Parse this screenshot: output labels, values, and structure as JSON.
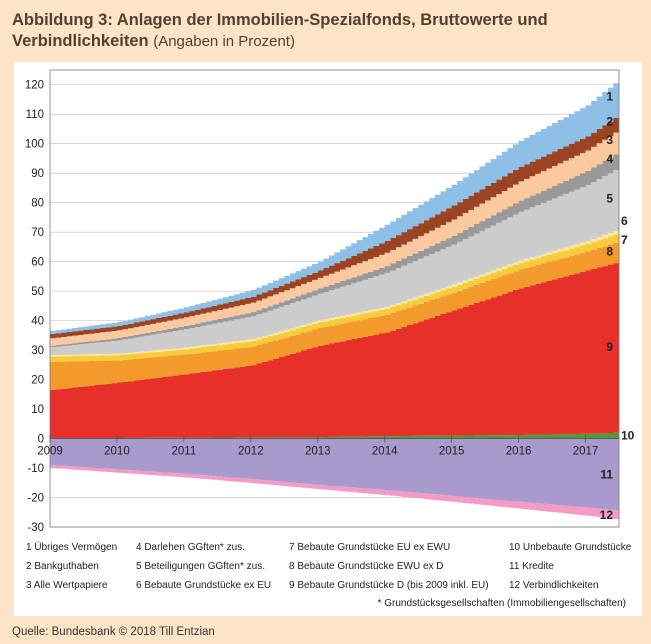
{
  "title": {
    "main": "Abbildung 3: Anlagen der Immobilien-Spezialfonds, Bruttowerte und Verbindlichkeiten",
    "sub": "(Angaben in Prozent)"
  },
  "chart_data": {
    "type": "area",
    "stacked": true,
    "xlabel": "",
    "ylabel": "",
    "xlim": [
      2009,
      2017.5
    ],
    "ylim": [
      -30,
      125
    ],
    "yticks": [
      -30,
      -20,
      -10,
      0,
      10,
      20,
      30,
      40,
      50,
      60,
      70,
      80,
      90,
      100,
      110,
      120
    ],
    "xticks": [
      "2009",
      "2010",
      "2011",
      "2012",
      "2013",
      "2014",
      "2015",
      "2016",
      "2017"
    ],
    "grid": "horizontal",
    "x": [
      2009,
      2010,
      2011,
      2012,
      2013,
      2014,
      2015,
      2016,
      2017,
      2017.5
    ],
    "series": [
      {
        "id": "10",
        "name": "Unbebaute Grundstücke",
        "color": "#4f9a3c",
        "values": [
          0.2,
          0.2,
          0.3,
          0.4,
          0.5,
          0.8,
          1.0,
          1.2,
          1.6,
          2.0
        ]
      },
      {
        "id": "9",
        "name": "Bebaute Grundstücke D (bis 2009 inkl. EU)",
        "color": "#e8302a",
        "values": [
          16.3,
          18.8,
          21.5,
          24.5,
          31.0,
          35.2,
          42.5,
          49.8,
          55.4,
          58.0
        ]
      },
      {
        "id": "8",
        "name": "Bebaute Grundstücke EWU ex D",
        "color": "#f39a2c",
        "values": [
          9.5,
          7.5,
          6.7,
          6.3,
          6.0,
          6.0,
          6.0,
          6.4,
          6.5,
          7.0
        ]
      },
      {
        "id": "7",
        "name": "Bebaute Grundstücke EU ex EWU",
        "color": "#f7cb3c",
        "values": [
          1.8,
          1.8,
          1.8,
          1.9,
          1.9,
          2.0,
          2.0,
          2.2,
          2.5,
          2.8
        ]
      },
      {
        "id": "6",
        "name": "Bebaute Grundstücke ex EU",
        "color": "#fbe79a",
        "values": [
          0.5,
          0.5,
          0.6,
          0.6,
          0.7,
          0.7,
          0.8,
          0.8,
          1.0,
          1.2
        ]
      },
      {
        "id": "5",
        "name": "Beteiligungen GGften* zus.",
        "color": "#cccccc",
        "values": [
          2.7,
          4.5,
          6.2,
          7.8,
          9.0,
          11.5,
          13.5,
          16.5,
          19.0,
          21.0
        ]
      },
      {
        "id": "4",
        "name": "Darlehen GGften* zus.",
        "color": "#999999",
        "values": [
          0.5,
          0.8,
          1.1,
          1.4,
          1.8,
          2.3,
          3.0,
          3.8,
          4.8,
          5.5
        ]
      },
      {
        "id": "3",
        "name": "Alle Wertpapiere",
        "color": "#fbc9a0",
        "values": [
          2.5,
          2.6,
          2.9,
          3.2,
          3.6,
          4.5,
          5.5,
          6.5,
          6.9,
          7.5
        ]
      },
      {
        "id": "2",
        "name": "Bankguthaben",
        "color": "#9b4423",
        "values": [
          1.5,
          1.5,
          1.7,
          2.0,
          2.5,
          4.0,
          4.8,
          5.0,
          4.8,
          5.0
        ]
      },
      {
        "id": "1",
        "name": "Übriges Vermögen",
        "color": "#8ebfe6",
        "values": [
          1.0,
          1.3,
          1.7,
          2.3,
          3.0,
          5.5,
          7.0,
          8.8,
          10.5,
          12.0
        ]
      }
    ],
    "negative_series": [
      {
        "id": "11",
        "name": "Kredite",
        "color": "#a99acd",
        "values": [
          -9.0,
          -10.5,
          -12.0,
          -13.8,
          -15.8,
          -17.5,
          -19.5,
          -21.5,
          -23.5,
          -24.5
        ]
      },
      {
        "id": "12",
        "name": "Verbindlichkeiten",
        "color": "#f49ac4",
        "values": [
          -1.0,
          -1.1,
          -1.2,
          -1.3,
          -1.4,
          -1.7,
          -2.0,
          -2.3,
          -2.7,
          -3.0
        ]
      }
    ]
  },
  "legend": {
    "columns": [
      [
        "1  Übriges Vermögen",
        "2  Bankguthaben",
        "3  Alle Wertpapiere"
      ],
      [
        "4  Darlehen GGften* zus.",
        "5  Beteiligungen GGften* zus.",
        "6  Bebaute Grundstücke ex EU"
      ],
      [
        "7  Bebaute Grundstücke EU ex EWU",
        "8  Bebaute Grundstücke EWU ex D",
        "9  Bebaute Grundstücke D (bis 2009 inkl. EU)"
      ],
      [
        "10  Unbebaute Grundstücke",
        "11  Kredite",
        "12  Verbindlichkeiten"
      ]
    ],
    "footnote": "* Grundstücksgesellschaften (Immobiliengesellschaften)"
  },
  "source": "Quelle: Bundesbank © 2018 Till Entzian"
}
